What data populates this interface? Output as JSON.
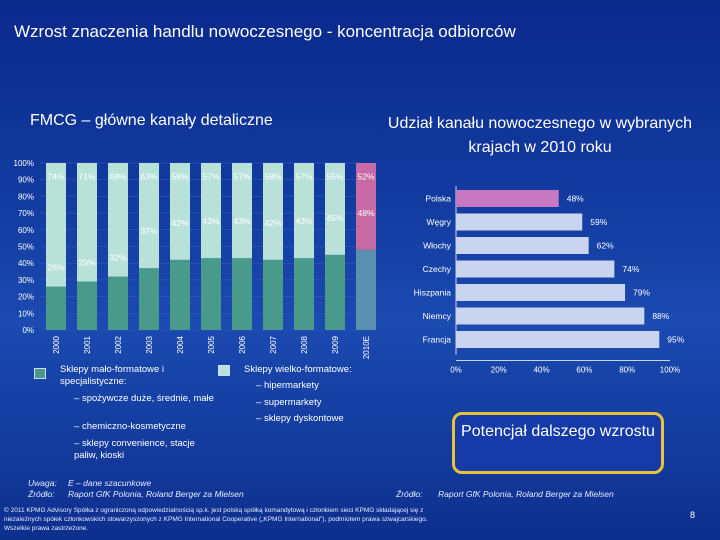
{
  "title": "Wzrost znaczenia handlu nowoczesnego - koncentracja odbiorców",
  "left_title": "FMCG – główne kanały detaliczne",
  "right_title": "Udział kanału nowoczesnego w wybranych krajach w 2010 roku",
  "legend": {
    "small_label": "Sklepy mało-formatowe i specjalistyczne:",
    "small_items": [
      "spożywcze duże, średnie, małe",
      "chemiczno-kosmetyczne",
      "sklepy convenience, stacje paliw, kioski"
    ],
    "large_label": "Sklepy wielko-formatowe:",
    "large_items": [
      "hipermarkety",
      "supermarkety",
      "sklepy dyskontowe"
    ]
  },
  "callout": "Potencjał dalszego wzrostu",
  "notes": {
    "uwaga_label": "Uwaga:",
    "uwaga_text": "E – dane szacunkowe",
    "zrodlo_label": "Źródło:",
    "zrodlo_left": "Raport GfK Polonia, Roland Berger za Mielsen",
    "zrodlo_right": "Raport GfK Polonia, Roland Berger za Mielsen"
  },
  "disclaimer": [
    "© 2011 KPMG Advisory Spółka z ograniczoną odpowiedzialnością sp.k. jest polską spółką komandytową i członkiem sieci KPMG składającej się z",
    "niezależnych spółek członkowskich stowarzyszonych z KPMG International Cooperative („KPMG International\"), podmiotem prawa szwajcarskiego.",
    "Wszelkie prawa zastrzeżone."
  ],
  "page_number": "8",
  "colors": {
    "small": "#4a9a8c",
    "large": "#b8e2d8",
    "large_e": "#c86aa6",
    "small_e": "#5a8fb0",
    "bar_right": "#c9d4ee",
    "poland": "#c878c0"
  },
  "chart_data": [
    {
      "type": "bar",
      "stacked": true,
      "categories": [
        "2000",
        "2001",
        "2002",
        "2003",
        "2004",
        "2005",
        "2006",
        "2007",
        "2008",
        "2009",
        "2010E"
      ],
      "series": [
        {
          "values": [
            26,
            29,
            32,
            37,
            42,
            43,
            43,
            42,
            43,
            45,
            48
          ]
        },
        {
          "values": [
            74,
            71,
            68,
            63,
            58,
            57,
            57,
            58,
            57,
            55,
            52
          ]
        }
      ],
      "ylim": [
        0,
        100
      ],
      "yticks": [
        "0%",
        "10%",
        "20%",
        "30%",
        "40%",
        "50%",
        "60%",
        "70%",
        "80%",
        "90%",
        "100%"
      ],
      "labels_small": [
        "26%",
        "29%",
        "32%",
        "37%",
        "42%",
        "43%",
        "43%",
        "42%",
        "43%",
        "45%",
        "48%"
      ],
      "labels_large": [
        "74%",
        "71%",
        "68%",
        "63%",
        "58%",
        "57%",
        "57%",
        "58%",
        "57%",
        "55%",
        "52%"
      ]
    },
    {
      "type": "bar",
      "orientation": "horizontal",
      "categories": [
        "Polska",
        "Węgry",
        "Włochy",
        "Czechy",
        "Hiszpania",
        "Niemcy",
        "Francja"
      ],
      "values": [
        48,
        59,
        62,
        74,
        79,
        88,
        95
      ],
      "value_labels": [
        "48%",
        "59%",
        "62%",
        "74%",
        "79%",
        "88%",
        "95%"
      ],
      "xlim": [
        0,
        100
      ],
      "xticks": [
        "0%",
        "20%",
        "40%",
        "60%",
        "80%",
        "100%"
      ]
    }
  ]
}
